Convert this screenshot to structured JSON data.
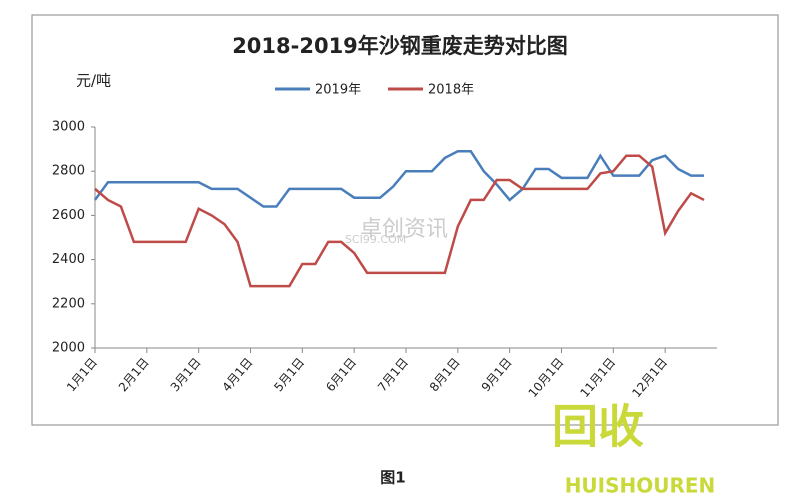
{
  "chart_data": {
    "type": "line",
    "title": "2018-2019年沙钢重废走势对比图",
    "y_label": "元/吨",
    "caption": "图1",
    "watermarks": [
      "卓创资讯",
      "SCI99.COM",
      "回收",
      "HUISHOUREN"
    ],
    "categories": [
      "1月1日",
      null,
      null,
      null,
      "2月1日",
      null,
      null,
      null,
      "3月1日",
      null,
      null,
      null,
      "4月1日",
      null,
      null,
      null,
      "5月1日",
      null,
      null,
      null,
      "6月1日",
      null,
      null,
      null,
      "7月1日",
      null,
      null,
      null,
      "8月1日",
      null,
      null,
      null,
      "9月1日",
      null,
      null,
      null,
      "10月1日",
      null,
      null,
      null,
      "11月1日",
      null,
      null,
      null,
      "12月1日",
      null,
      null,
      null
    ],
    "series": [
      {
        "name": "2019年",
        "color": "#4a7ebb",
        "values": [
          2670,
          2750,
          2750,
          2750,
          2750,
          2750,
          2750,
          2750,
          2750,
          2720,
          2720,
          2720,
          2680,
          2640,
          2640,
          2720,
          2720,
          2720,
          2720,
          2720,
          2680,
          2680,
          2680,
          2730,
          2800,
          2800,
          2800,
          2860,
          2890,
          2890,
          2800,
          2740,
          2670,
          2720,
          2810,
          2810,
          2770,
          2770,
          2770,
          2870,
          2780,
          2780,
          2780,
          2850,
          2870,
          2810,
          2780,
          2780
        ]
      },
      {
        "name": "2018年",
        "color": "#be4b48",
        "values": [
          2720,
          2670,
          2640,
          2480,
          2480,
          2480,
          2480,
          2480,
          2630,
          2600,
          2560,
          2480,
          2280,
          2280,
          2280,
          2280,
          2380,
          2380,
          2480,
          2480,
          2430,
          2340,
          2340,
          2340,
          2340,
          2340,
          2340,
          2340,
          2550,
          2670,
          2670,
          2760,
          2760,
          2720,
          2720,
          2720,
          2720,
          2720,
          2720,
          2790,
          2800,
          2870,
          2870,
          2820,
          2520,
          2620,
          2700,
          2670
        ]
      }
    ],
    "ylim": [
      2000,
      3000
    ],
    "yticks": [
      2000,
      2200,
      2400,
      2600,
      2800,
      3000
    ]
  }
}
